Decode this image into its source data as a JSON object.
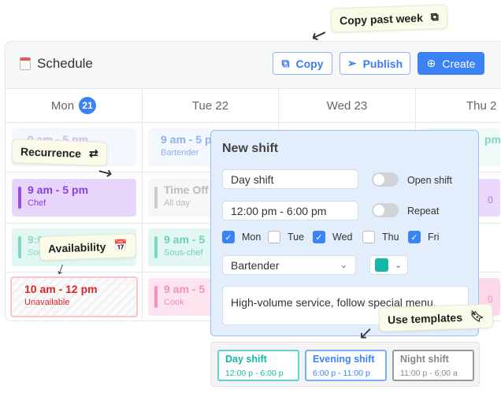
{
  "header": {
    "title": "Schedule",
    "copy": "Copy",
    "publish": "Publish",
    "create": "Create"
  },
  "days": [
    {
      "label": "Mon",
      "badge": "21"
    },
    {
      "label": "Tue 22"
    },
    {
      "label": "Wed 23"
    },
    {
      "label": "Thu 2"
    }
  ],
  "shifts": {
    "mon1": {
      "time": "9 am - 5 pm"
    },
    "tue1": {
      "time": "9 am - 5 pm",
      "role": "Bartender"
    },
    "thu1": {
      "time": "pm"
    },
    "mon2": {
      "time": "9 am - 5 pm",
      "role": "Chef"
    },
    "tue2": {
      "time": "Time Off",
      "role": "All day"
    },
    "thu2": {
      "time": "0"
    },
    "mon3": {
      "time": "9:00",
      "role": "Sous"
    },
    "tue3": {
      "time": "9 am - 5",
      "role": "Sous-chef"
    },
    "mon4": {
      "time": "10 am - 12 pm",
      "role": "Unavailable"
    },
    "tue4": {
      "time": "9 am - 5",
      "role": "Cook"
    },
    "thu4": {
      "time": "0"
    }
  },
  "annotations": {
    "copy_past_week": "Copy past week",
    "recurrence": "Recurrence",
    "availability": "Availability",
    "use_templates": "Use templates"
  },
  "modal": {
    "title": "New shift",
    "name_value": "Day shift",
    "time_value": "12:00 pm - 6:00 pm",
    "open_shift": "Open shift",
    "open_shift_on": false,
    "repeat": "Repeat",
    "repeat_on": false,
    "days": [
      {
        "label": "Mon",
        "checked": true
      },
      {
        "label": "Tue",
        "checked": false
      },
      {
        "label": "Wed",
        "checked": true
      },
      {
        "label": "Thu",
        "checked": false
      },
      {
        "label": "Fri",
        "checked": true
      }
    ],
    "role_value": "Bartender",
    "color_value": "#14b8a6",
    "notes_value": "High-volume service, follow special menu."
  },
  "templates": [
    {
      "name": "Day shift",
      "time": "12:00 p - 6:00 p",
      "color": "#14b8a6"
    },
    {
      "name": "Evening shift",
      "time": "6:00 p - 11:00 p",
      "color": "#3b82f6"
    },
    {
      "name": "Night shift",
      "time": "11:00 p - 6:00 a",
      "color": "#888888"
    }
  ]
}
